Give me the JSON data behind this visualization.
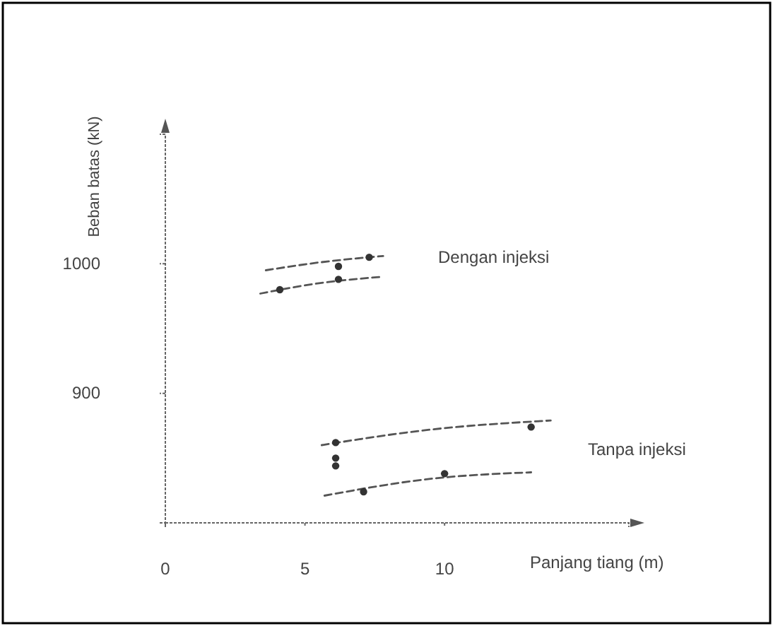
{
  "chart_data": {
    "type": "line",
    "xlabel": "Panjang  tiang (m)",
    "ylabel": "Beban batas (kN)",
    "xlim": [
      0,
      16.6
    ],
    "ylim": [
      800,
      1100
    ],
    "xticks": [
      0,
      5,
      10
    ],
    "yticks": [
      900,
      1000
    ],
    "grid": false,
    "line_style": "dashed",
    "series": [
      {
        "color": "#555555",
        "x": [
          3.6,
          5.5,
          7.8
        ],
        "values": [
          995,
          1001,
          1006
        ]
      },
      {
        "color": "#555555",
        "x": [
          3.4,
          5.5,
          7.8
        ],
        "values": [
          977,
          985,
          990
        ]
      },
      {
        "color": "#555555",
        "x": [
          5.6,
          9.5,
          13.8
        ],
        "values": [
          860,
          872,
          879
        ]
      },
      {
        "color": "#555555",
        "x": [
          5.7,
          9.5,
          13.1
        ],
        "values": [
          821,
          834,
          839
        ]
      },
      {
        "type": "scatter",
        "color": "#333333",
        "marker": "circle",
        "x": [
          6.2,
          7.3,
          4.1,
          6.2,
          6.1,
          13.1,
          6.1,
          6.1,
          7.1,
          10.0
        ],
        "values": [
          998,
          1005,
          980,
          988,
          862,
          874,
          850,
          844,
          824,
          838
        ]
      }
    ],
    "annotations": [
      "Dengan injeksi",
      "Tanpa injeksi"
    ]
  }
}
